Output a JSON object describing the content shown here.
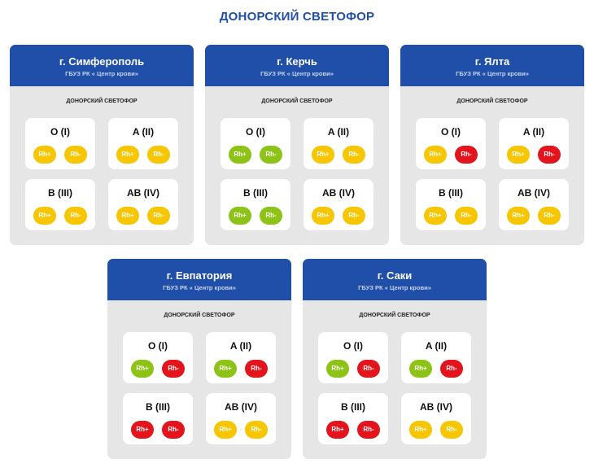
{
  "title": "ДОНОРСКИЙ СВЕТОФОР",
  "colors": {
    "yellow": "#f7c600",
    "green": "#8cc316",
    "red": "#e3141b",
    "header": "#1f4fa8"
  },
  "cards": [
    {
      "city": "г. Симферополь",
      "org": "ГБУЗ РК « Центр крови»",
      "subtitle": "ДОНОРСКИЙ СВЕТОФОР",
      "groups": [
        {
          "label": "O (I)",
          "rh_pos": {
            "label": "Rh+",
            "status": "yellow"
          },
          "rh_neg": {
            "label": "Rh-",
            "status": "yellow"
          }
        },
        {
          "label": "A (II)",
          "rh_pos": {
            "label": "Rh+",
            "status": "yellow"
          },
          "rh_neg": {
            "label": "Rh-",
            "status": "yellow"
          }
        },
        {
          "label": "B (III)",
          "rh_pos": {
            "label": "Rh+",
            "status": "yellow"
          },
          "rh_neg": {
            "label": "Rh-",
            "status": "yellow"
          }
        },
        {
          "label": "AB (IV)",
          "rh_pos": {
            "label": "Rh+",
            "status": "yellow"
          },
          "rh_neg": {
            "label": "Rh-",
            "status": "yellow"
          }
        }
      ]
    },
    {
      "city": "г. Керчь",
      "org": "ГБУЗ РК « Центр крови»",
      "subtitle": "ДОНОРСКИЙ СВЕТОФОР",
      "groups": [
        {
          "label": "O (I)",
          "rh_pos": {
            "label": "Rh+",
            "status": "green"
          },
          "rh_neg": {
            "label": "Rh-",
            "status": "green"
          }
        },
        {
          "label": "A (II)",
          "rh_pos": {
            "label": "Rh+",
            "status": "yellow"
          },
          "rh_neg": {
            "label": "Rh-",
            "status": "yellow"
          }
        },
        {
          "label": "B (III)",
          "rh_pos": {
            "label": "Rh+",
            "status": "green"
          },
          "rh_neg": {
            "label": "Rh-",
            "status": "green"
          }
        },
        {
          "label": "AB (IV)",
          "rh_pos": {
            "label": "Rh+",
            "status": "yellow"
          },
          "rh_neg": {
            "label": "Rh-",
            "status": "yellow"
          }
        }
      ]
    },
    {
      "city": "г. Ялта",
      "org": "ГБУЗ РК « Центр крови»",
      "subtitle": "ДОНОРСКИЙ СВЕТОФОР",
      "groups": [
        {
          "label": "O (I)",
          "rh_pos": {
            "label": "Rh+",
            "status": "yellow"
          },
          "rh_neg": {
            "label": "Rh-",
            "status": "red"
          }
        },
        {
          "label": "A (II)",
          "rh_pos": {
            "label": "Rh+",
            "status": "yellow"
          },
          "rh_neg": {
            "label": "Rh-",
            "status": "red"
          }
        },
        {
          "label": "B (III)",
          "rh_pos": {
            "label": "Rh+",
            "status": "yellow"
          },
          "rh_neg": {
            "label": "Rh-",
            "status": "yellow"
          }
        },
        {
          "label": "AB (IV)",
          "rh_pos": {
            "label": "Rh+",
            "status": "yellow"
          },
          "rh_neg": {
            "label": "Rh-",
            "status": "yellow"
          }
        }
      ]
    },
    {
      "city": "г. Евпатория",
      "org": "ГБУЗ РК « Центр крови»",
      "subtitle": "ДОНОРСКИЙ СВЕТОФОР",
      "groups": [
        {
          "label": "O (I)",
          "rh_pos": {
            "label": "Rh+",
            "status": "green"
          },
          "rh_neg": {
            "label": "Rh-",
            "status": "red"
          }
        },
        {
          "label": "A (II)",
          "rh_pos": {
            "label": "Rh+",
            "status": "green"
          },
          "rh_neg": {
            "label": "Rh-",
            "status": "red"
          }
        },
        {
          "label": "B (III)",
          "rh_pos": {
            "label": "Rh+",
            "status": "red"
          },
          "rh_neg": {
            "label": "Rh-",
            "status": "red"
          }
        },
        {
          "label": "AB (IV)",
          "rh_pos": {
            "label": "Rh+",
            "status": "yellow"
          },
          "rh_neg": {
            "label": "Rh-",
            "status": "yellow"
          }
        }
      ]
    },
    {
      "city": "г. Саки",
      "org": "ГБУЗ РК « Центр крови»",
      "subtitle": "ДОНОРСКИЙ СВЕТОФОР",
      "groups": [
        {
          "label": "O (I)",
          "rh_pos": {
            "label": "Rh+",
            "status": "green"
          },
          "rh_neg": {
            "label": "Rh-",
            "status": "red"
          }
        },
        {
          "label": "A (II)",
          "rh_pos": {
            "label": "Rh+",
            "status": "green"
          },
          "rh_neg": {
            "label": "Rh-",
            "status": "red"
          }
        },
        {
          "label": "B (III)",
          "rh_pos": {
            "label": "Rh+",
            "status": "red"
          },
          "rh_neg": {
            "label": "Rh-",
            "status": "red"
          }
        },
        {
          "label": "AB (IV)",
          "rh_pos": {
            "label": "Rh+",
            "status": "yellow"
          },
          "rh_neg": {
            "label": "Rh-",
            "status": "yellow"
          }
        }
      ]
    }
  ]
}
